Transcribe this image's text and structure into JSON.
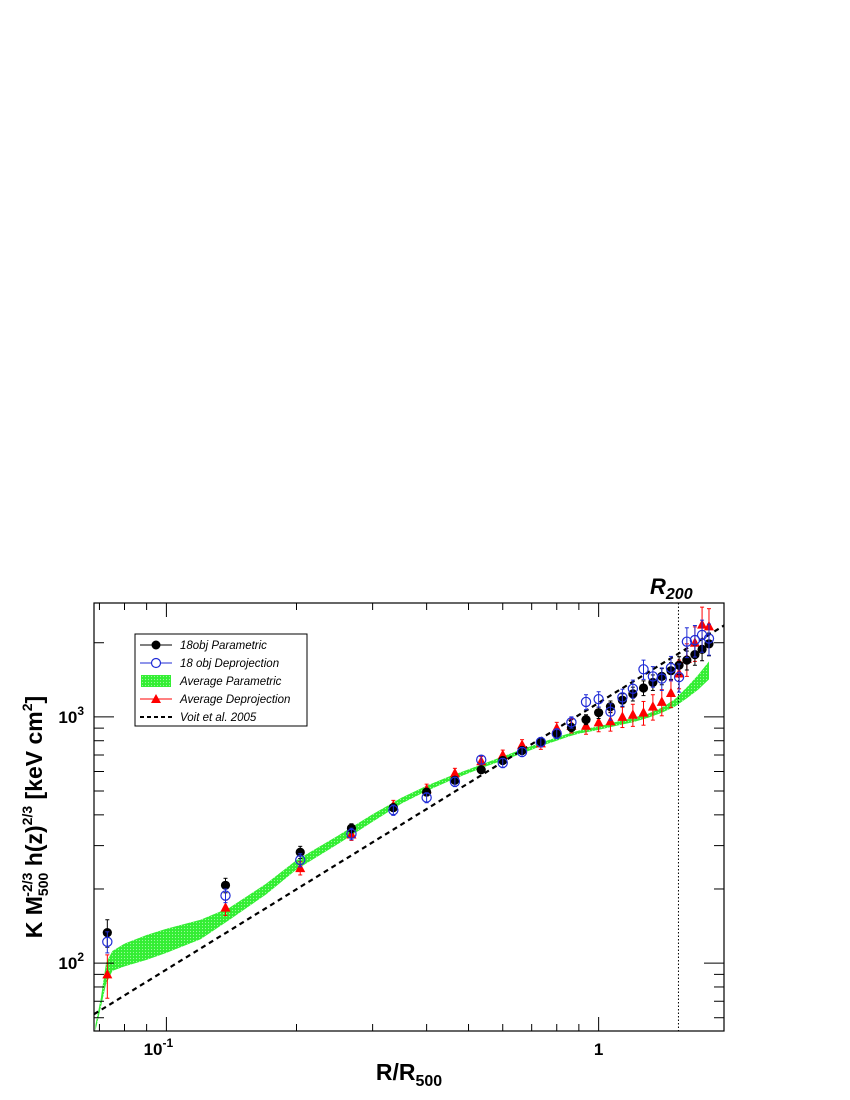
{
  "chart_data": {
    "type": "scatter",
    "x_scale": "log",
    "y_scale": "log",
    "xlim": [
      0.068,
      1.95
    ],
    "ylim": [
      53,
      2900
    ],
    "x_ticks_major": [
      {
        "value": 0.1,
        "label": "10",
        "exp": "-1"
      },
      {
        "value": 1,
        "label": "1",
        "exp": ""
      }
    ],
    "y_ticks_major": [
      {
        "value": 100,
        "label": "10",
        "exp": "2"
      },
      {
        "value": 1000,
        "label": "10",
        "exp": "3"
      }
    ],
    "xlabel": {
      "main": "R/R",
      "sub": "500"
    },
    "ylabel": {
      "p1": "K M",
      "sub1": "500",
      "sup1": "-2/3",
      "p2": " h(z)",
      "sup2": "2/3",
      "p3": " [keV cm",
      "sup3": "2",
      "p4": "]"
    },
    "vline": {
      "x": 1.53,
      "label": "R",
      "label_sub": "200"
    },
    "legend_position": "top-left",
    "series": [
      {
        "name": "18obj Parametric",
        "marker": "filled-circle",
        "color": "#000000",
        "points": [
          {
            "x": 0.073,
            "y": 133,
            "err": 17
          },
          {
            "x": 0.137,
            "y": 207,
            "err": 14
          },
          {
            "x": 0.204,
            "y": 282,
            "err": 16
          },
          {
            "x": 0.268,
            "y": 353,
            "err": 15
          },
          {
            "x": 0.335,
            "y": 428,
            "err": 15
          },
          {
            "x": 0.4,
            "y": 495,
            "err": 17
          },
          {
            "x": 0.465,
            "y": 553,
            "err": 17
          },
          {
            "x": 0.535,
            "y": 610,
            "err": 17
          },
          {
            "x": 0.6,
            "y": 665,
            "err": 18
          },
          {
            "x": 0.665,
            "y": 730,
            "err": 20
          },
          {
            "x": 0.735,
            "y": 790,
            "err": 25
          },
          {
            "x": 0.8,
            "y": 850,
            "err": 30
          },
          {
            "x": 0.865,
            "y": 905,
            "err": 35
          },
          {
            "x": 0.935,
            "y": 975,
            "err": 45
          },
          {
            "x": 1.0,
            "y": 1040,
            "err": 55
          },
          {
            "x": 1.065,
            "y": 1100,
            "err": 60
          },
          {
            "x": 1.135,
            "y": 1170,
            "err": 70
          },
          {
            "x": 1.2,
            "y": 1240,
            "err": 80
          },
          {
            "x": 1.27,
            "y": 1310,
            "err": 90
          },
          {
            "x": 1.335,
            "y": 1380,
            "err": 100
          },
          {
            "x": 1.4,
            "y": 1460,
            "err": 110
          },
          {
            "x": 1.47,
            "y": 1540,
            "err": 120
          },
          {
            "x": 1.535,
            "y": 1620,
            "err": 135
          },
          {
            "x": 1.6,
            "y": 1700,
            "err": 150
          },
          {
            "x": 1.67,
            "y": 1790,
            "err": 170
          },
          {
            "x": 1.735,
            "y": 1880,
            "err": 190
          },
          {
            "x": 1.8,
            "y": 1980,
            "err": 210
          }
        ]
      },
      {
        "name": "18 obj Deprojection",
        "marker": "open-circle",
        "color": "#1f2bd6",
        "points": [
          {
            "x": 0.073,
            "y": 122,
            "err": 12
          },
          {
            "x": 0.137,
            "y": 188,
            "err": 12
          },
          {
            "x": 0.204,
            "y": 262,
            "err": 16
          },
          {
            "x": 0.268,
            "y": 335,
            "err": 18
          },
          {
            "x": 0.335,
            "y": 418,
            "err": 20
          },
          {
            "x": 0.4,
            "y": 470,
            "err": 22
          },
          {
            "x": 0.465,
            "y": 545,
            "err": 24
          },
          {
            "x": 0.535,
            "y": 670,
            "err": 26
          },
          {
            "x": 0.6,
            "y": 650,
            "err": 28
          },
          {
            "x": 0.665,
            "y": 720,
            "err": 30
          },
          {
            "x": 0.735,
            "y": 790,
            "err": 35
          },
          {
            "x": 0.8,
            "y": 855,
            "err": 40
          },
          {
            "x": 0.865,
            "y": 950,
            "err": 50
          },
          {
            "x": 0.935,
            "y": 1150,
            "err": 80
          },
          {
            "x": 1.0,
            "y": 1180,
            "err": 85
          },
          {
            "x": 1.065,
            "y": 1050,
            "err": 80
          },
          {
            "x": 1.135,
            "y": 1200,
            "err": 95
          },
          {
            "x": 1.2,
            "y": 1300,
            "err": 110
          },
          {
            "x": 1.27,
            "y": 1560,
            "err": 140
          },
          {
            "x": 1.335,
            "y": 1460,
            "err": 140
          },
          {
            "x": 1.4,
            "y": 1430,
            "err": 150
          },
          {
            "x": 1.47,
            "y": 1580,
            "err": 180
          },
          {
            "x": 1.535,
            "y": 1450,
            "err": 190
          },
          {
            "x": 1.6,
            "y": 2020,
            "err": 280
          },
          {
            "x": 1.67,
            "y": 2050,
            "err": 300
          },
          {
            "x": 1.735,
            "y": 2150,
            "err": 320
          },
          {
            "x": 1.8,
            "y": 2080,
            "err": 300
          }
        ]
      },
      {
        "name": "Average Deprojection",
        "marker": "filled-triangle",
        "color": "#ff0000",
        "points": [
          {
            "x": 0.073,
            "y": 90,
            "err": 18
          },
          {
            "x": 0.137,
            "y": 168,
            "err": 12
          },
          {
            "x": 0.204,
            "y": 243,
            "err": 15
          },
          {
            "x": 0.268,
            "y": 333,
            "err": 18
          },
          {
            "x": 0.335,
            "y": 436,
            "err": 22
          },
          {
            "x": 0.4,
            "y": 508,
            "err": 25
          },
          {
            "x": 0.465,
            "y": 590,
            "err": 28
          },
          {
            "x": 0.535,
            "y": 660,
            "err": 30
          },
          {
            "x": 0.6,
            "y": 700,
            "err": 33
          },
          {
            "x": 0.665,
            "y": 770,
            "err": 38
          },
          {
            "x": 0.735,
            "y": 780,
            "err": 42
          },
          {
            "x": 0.8,
            "y": 900,
            "err": 50
          },
          {
            "x": 0.865,
            "y": 920,
            "err": 60
          },
          {
            "x": 0.935,
            "y": 920,
            "err": 70
          },
          {
            "x": 1.0,
            "y": 950,
            "err": 80
          },
          {
            "x": 1.065,
            "y": 960,
            "err": 85
          },
          {
            "x": 1.135,
            "y": 1000,
            "err": 95
          },
          {
            "x": 1.2,
            "y": 1020,
            "err": 105
          },
          {
            "x": 1.27,
            "y": 1040,
            "err": 115
          },
          {
            "x": 1.335,
            "y": 1100,
            "err": 130
          },
          {
            "x": 1.4,
            "y": 1150,
            "err": 140
          },
          {
            "x": 1.47,
            "y": 1250,
            "err": 160
          },
          {
            "x": 1.535,
            "y": 1500,
            "err": 200
          },
          {
            "x": 1.6,
            "y": 1720,
            "err": 260
          },
          {
            "x": 1.67,
            "y": 2000,
            "err": 320
          },
          {
            "x": 1.735,
            "y": 2370,
            "err": 420
          },
          {
            "x": 1.8,
            "y": 2330,
            "err": 420
          }
        ]
      }
    ],
    "band": {
      "name": "Average Parametric",
      "color": "#33ee33",
      "x": [
        0.0685,
        0.0705,
        0.0725,
        0.075,
        0.08,
        0.09,
        0.1,
        0.12,
        0.14,
        0.17,
        0.2,
        0.25,
        0.3,
        0.35,
        0.4,
        0.45,
        0.5,
        0.55,
        0.6,
        0.65,
        0.7,
        0.75,
        0.8,
        0.85,
        0.9,
        0.95,
        1.0,
        1.1,
        1.2,
        1.3,
        1.4,
        1.5,
        1.6,
        1.7,
        1.8
      ],
      "y_low": [
        53,
        66,
        82,
        93,
        97,
        103,
        110,
        125,
        150,
        190,
        240,
        305,
        375,
        445,
        500,
        548,
        590,
        630,
        665,
        700,
        735,
        770,
        800,
        830,
        855,
        870,
        885,
        920,
        950,
        990,
        1040,
        1100,
        1190,
        1290,
        1420
      ],
      "y_high": [
        56,
        72,
        100,
        112,
        120,
        130,
        138,
        150,
        168,
        210,
        262,
        330,
        402,
        470,
        525,
        572,
        612,
        652,
        690,
        728,
        762,
        795,
        825,
        855,
        880,
        900,
        915,
        955,
        990,
        1030,
        1090,
        1180,
        1320,
        1480,
        1680
      ]
    },
    "reference_line": {
      "name": "Voit et al. 2005",
      "style": "dashed",
      "color": "#000000",
      "x": [
        0.068,
        1.95
      ],
      "y": [
        62,
        2350
      ]
    }
  }
}
